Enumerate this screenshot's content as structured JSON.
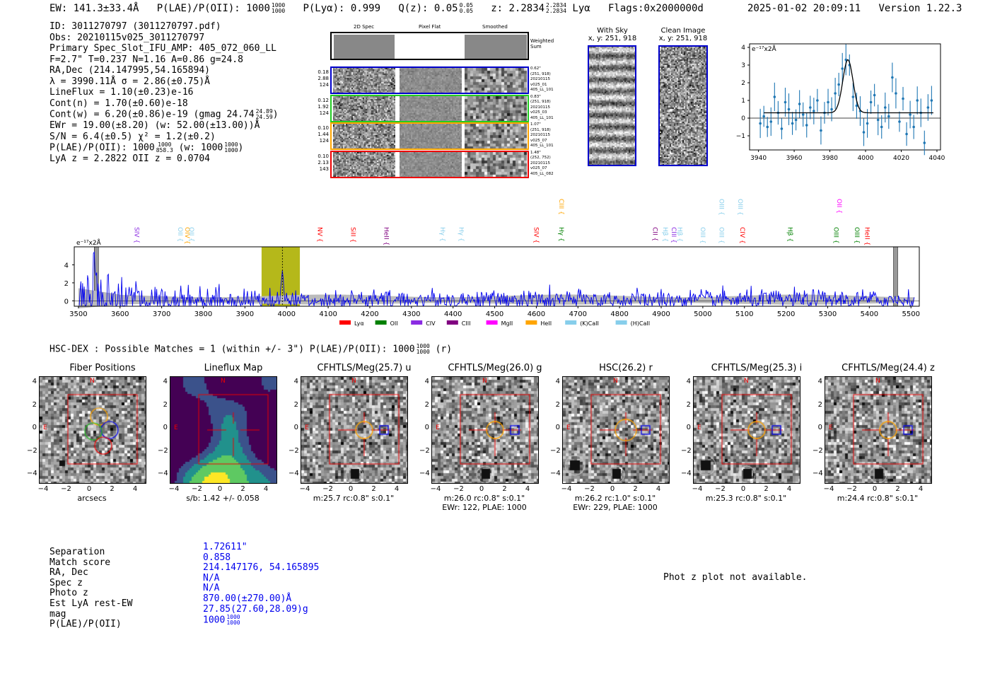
{
  "header": {
    "ew": "EW: 141.3±33.4Å",
    "plae_label": "P(LAE)/P(OII): 1000",
    "plae_hi": "1000",
    "plae_lo": "1000",
    "plya": "P(Lyα): 0.999",
    "qz_label": "Q(z): 0.05",
    "qz_hi": "0.05",
    "qz_lo": "0.05",
    "z_label": "z: 2.2834",
    "z_hi": "2.2834",
    "z_lo": "2.2834",
    "z_line": "Lyα",
    "flags": "Flags:0x2000000d",
    "datetime": "2025-01-02 20:09:11",
    "version": "Version 1.22.3"
  },
  "info": {
    "id": "ID: 3011270797 (3011270797.pdf)",
    "obs": "Obs: 20210115v025_3011270797",
    "primary": "Primary Spec_Slot_IFU_AMP: 405_072_060_LL",
    "fline": "F=2.7\"  T=0.237  N=1.16  A=0.86  g=24.8",
    "radec": "RA,Dec (214.147995,54.165894)",
    "lambda": "λ = 3990.11Å  σ = 2.86(±0.75)Å",
    "lineflux": "LineFlux = 1.10(±0.23)e-16",
    "contn": "Cont(n) = 1.70(±0.60)e-18",
    "contw": "Cont(w) = 6.20(±0.86)e-19 (gmag 24.74",
    "contw_hi": "24.89",
    "contw_lo": "24.59",
    "ewr": "EWr = 19.00(±8.20) (w: 52.00(±13.00))Å",
    "sn": "S/N = 6.4(±0.5)  χ² = 1.2(±0.2)",
    "plae": "P(LAE)/P(OII): 1000",
    "plae_hi": "1000",
    "plae_lo": "858.3",
    "plae_w": "(w: 1000",
    "plae_w_hi": "1000",
    "plae_w_lo": "1000",
    "lyaz": "LyA z = 2.2822  OII z = 0.0704"
  },
  "cutouts": {
    "col_titles": [
      "2D Spec",
      "Pixel Flat",
      "Smoothed"
    ],
    "weighted_sum": "Weighted Sum",
    "rows": [
      {
        "color": "#0000cc",
        "left": [
          "0.18",
          "2.88",
          "124"
        ],
        "right": [
          "0.62\"",
          "(251, 918)",
          "20210115",
          "v025_01",
          "405_LL_101"
        ]
      },
      {
        "color": "#22cc22",
        "left": [
          "0.12",
          "1.92",
          "124"
        ],
        "right": [
          "0.83\"",
          "(251, 918)",
          "20210115",
          "v025_03",
          "405_LL_101"
        ]
      },
      {
        "color": "#ffa500",
        "left": [
          "0.10",
          "1.44",
          "124"
        ],
        "right": [
          "1.07\"",
          "(251, 918)",
          "20210115",
          "v025_07",
          "405_LL_101"
        ]
      },
      {
        "color": "#ee0000",
        "left": [
          "0.10",
          "2.13",
          "143"
        ],
        "right": [
          "1.48\"",
          "(252, 752)",
          "20210115",
          "v025_07",
          "405_LL_082"
        ]
      }
    ]
  },
  "sky": {
    "with_sky_title": "With Sky",
    "with_sky_xy": "x, y: 251, 918",
    "clean_title": "Clean Image",
    "clean_xy": "x, y: 251, 918"
  },
  "zoom_chart": {
    "unit": "e⁻¹⁷x2Å",
    "x_ticks": [
      "3940",
      "3960",
      "3980",
      "4000",
      "4020",
      "4040"
    ],
    "y_ticks": [
      "4",
      "3",
      "2",
      "1",
      "0",
      "−1"
    ]
  },
  "chart_data": [
    {
      "type": "scatter",
      "title": "",
      "xlabel": "",
      "ylabel": "e-17x2Å",
      "xlim": [
        3935,
        4042
      ],
      "ylim": [
        -1.8,
        4.2
      ],
      "x": [
        3941,
        3943,
        3945,
        3947,
        3949,
        3951,
        3953,
        3955,
        3957,
        3959,
        3961,
        3963,
        3965,
        3967,
        3969,
        3971,
        3973,
        3975,
        3977,
        3979,
        3981,
        3983,
        3985,
        3987,
        3989,
        3991,
        3993,
        3995,
        3997,
        3999,
        4001,
        4003,
        4005,
        4007,
        4009,
        4011,
        4013,
        4015,
        4017,
        4019,
        4021,
        4023,
        4025,
        4027,
        4029,
        4031,
        4033,
        4035,
        4037
      ],
      "y": [
        -0.3,
        0.1,
        -0.5,
        -0.2,
        1.2,
        0.3,
        -0.6,
        0.9,
        0.5,
        -0.3,
        -0.1,
        0.8,
        0.2,
        -0.4,
        0.6,
        0.4,
        1.0,
        -0.7,
        0.3,
        0.9,
        0.5,
        1.4,
        1.9,
        2.8,
        3.3,
        3.0,
        1.2,
        0.7,
        0.4,
        -0.8,
        -0.3,
        0.9,
        1.3,
        -0.1,
        -0.5,
        0.6,
        0.1,
        2.3,
        1.4,
        -0.2,
        1.1,
        -0.9,
        0.2,
        -0.5,
        1.0,
        0.3,
        -1.4,
        0.6,
        1.0
      ],
      "fit_peak": 3.0,
      "fit_center": 3990.1,
      "fit_baseline": 0.3
    },
    {
      "type": "line",
      "title": "",
      "xlabel": "",
      "ylabel": "e-17x2Å",
      "xlim": [
        3490,
        5520
      ],
      "ylim": [
        -0.6,
        6.0
      ],
      "x_ticks": [
        3500,
        3600,
        3700,
        3800,
        3900,
        4000,
        4100,
        4200,
        4300,
        4400,
        4500,
        4600,
        4700,
        4800,
        4900,
        5000,
        5100,
        5200,
        5300,
        5400,
        5500
      ],
      "y_ticks": [
        0,
        2,
        4
      ],
      "highlight_range": [
        3940,
        4032
      ],
      "line_marker": 3990,
      "legend": [
        "Lyα",
        "OII",
        "CIV",
        "CIII",
        "MgII",
        "HeII",
        "(K)CaII",
        "(H)CaII"
      ],
      "legend_colors": [
        "#ff0000",
        "#008000",
        "#8a2be2",
        "#800080",
        "#ff00ff",
        "#ffa500",
        "#87ceeb",
        "#87ceeb"
      ]
    }
  ],
  "spectrum": {
    "unit": "e⁻¹⁷x2Å",
    "lines": [
      {
        "label": "SIV",
        "x": 3630,
        "color": "#8a2be2",
        "tier": 0
      },
      {
        "label": "OII",
        "x": 3735,
        "color": "#87ceeb",
        "tier": 0
      },
      {
        "label": "OIV",
        "x": 3752,
        "color": "#ffa500",
        "tier": 0
      },
      {
        "label": "OII",
        "x": 3762,
        "color": "#87ceeb",
        "tier": 0
      },
      {
        "label": "NV",
        "x": 4070,
        "color": "#ff0000",
        "tier": 0
      },
      {
        "label": "SiII",
        "x": 4150,
        "color": "#ff0000",
        "tier": 0
      },
      {
        "label": "HeII",
        "x": 4230,
        "color": "#800080",
        "tier": 0
      },
      {
        "label": "Hγ",
        "x": 4365,
        "color": "#87ceeb",
        "tier": 0
      },
      {
        "label": "Hγ",
        "x": 4410,
        "color": "#87ceeb",
        "tier": 0
      },
      {
        "label": "SIV",
        "x": 4590,
        "color": "#ff0000",
        "tier": 0
      },
      {
        "label": "Hγ",
        "x": 4650,
        "color": "#008000",
        "tier": 0
      },
      {
        "label": "CIII",
        "x": 4650,
        "color": "#ffa500",
        "tier": 1
      },
      {
        "label": "CII",
        "x": 4875,
        "color": "#800080",
        "tier": 0
      },
      {
        "label": "Hβ",
        "x": 4900,
        "color": "#87ceeb",
        "tier": 0
      },
      {
        "label": "CIII",
        "x": 4920,
        "color": "#8a2be2",
        "tier": 0
      },
      {
        "label": "Hβ",
        "x": 4935,
        "color": "#87ceeb",
        "tier": 0
      },
      {
        "label": "OIII",
        "x": 4990,
        "color": "#87ceeb",
        "tier": 0
      },
      {
        "label": "OIII",
        "x": 5035,
        "color": "#87ceeb",
        "tier": 0
      },
      {
        "label": "OIII",
        "x": 5035,
        "color": "#87ceeb",
        "tier": 1
      },
      {
        "label": "OIII",
        "x": 5080,
        "color": "#87ceeb",
        "tier": 1
      },
      {
        "label": "CIV",
        "x": 5085,
        "color": "#ff0000",
        "tier": 0
      },
      {
        "label": "Hβ",
        "x": 5200,
        "color": "#008000",
        "tier": 0
      },
      {
        "label": "OIII",
        "x": 5310,
        "color": "#008000",
        "tier": 0
      },
      {
        "label": "OII",
        "x": 5318,
        "color": "#ff00ff",
        "tier": 1
      },
      {
        "label": "OIII",
        "x": 5360,
        "color": "#008000",
        "tier": 0
      },
      {
        "label": "HeII",
        "x": 5385,
        "color": "#ff0000",
        "tier": 0
      }
    ]
  },
  "hsc": {
    "title": "HSC-DEX : Possible Matches = 1 (within +/- 3\")  P(LAE)/P(OII): 1000",
    "title_hi": "1000",
    "title_lo": "1000",
    "title_tail": "(r)"
  },
  "panels": [
    {
      "title": "Fiber Positions",
      "type": "fibers",
      "cap1": "arcsecs",
      "cap2": ""
    },
    {
      "title": "Lineflux Map",
      "type": "lineflux",
      "cap1": "s/b: 1.42 +/- 0.058",
      "cap2": ""
    },
    {
      "title": "CFHTLS/Meg(25.7) u",
      "type": "img",
      "cap1": "m:25.7 rc:0.8\"  s:0.1\"",
      "cap2": ""
    },
    {
      "title": "CFHTLS/Meg(26.0) g",
      "type": "img",
      "cap1": "m:26.0 rc:0.8\"  s:0.1\"",
      "cap2": "EWr: 122, PLAE: 1000"
    },
    {
      "title": "HSC(26.2) r",
      "type": "img",
      "cap1": "m:26.2 rc:1.0\"  s:0.1\"",
      "cap2": "EWr: 229, PLAE: 1000"
    },
    {
      "title": "CFHTLS/Meg(25.3) i",
      "type": "img",
      "cap1": "m:25.3 rc:0.8\"  s:0.1\"",
      "cap2": ""
    },
    {
      "title": "CFHTLS/Meg(24.4) z",
      "type": "img",
      "cap1": "m:24.4 rc:0.8\"  s:0.1\"",
      "cap2": ""
    }
  ],
  "panel_axis": {
    "y_ticks": [
      "4",
      "2",
      "0",
      "−2",
      "−4"
    ],
    "x_ticks": [
      "−4",
      "−2",
      "0",
      "2",
      "4"
    ],
    "north": "N",
    "east": "E"
  },
  "match": {
    "labels": [
      "Separation",
      "Match score",
      "RA, Dec",
      "Spec z",
      "Photo z",
      "Est LyA rest-EW",
      "mag",
      "P(LAE)/P(OII)"
    ],
    "values": [
      "1.72611\"",
      "0.858",
      "214.147176, 54.165895",
      "N/A",
      "N/A",
      "870.00(±270.00)Å",
      "27.85(27.60,28.09)g",
      "1000"
    ],
    "plae_hi": "1000",
    "plae_lo": "1000"
  },
  "photz": "Phot z plot not available."
}
